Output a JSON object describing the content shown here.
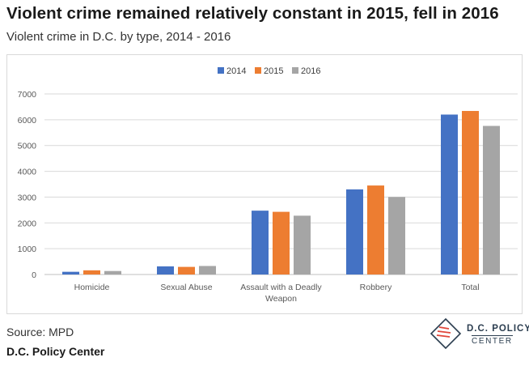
{
  "header": {
    "title": "Violent crime remained relatively constant in 2015, fell in 2016",
    "subtitle": "Violent crime in D.C. by type, 2014 - 2016"
  },
  "footer": {
    "source": "Source: MPD",
    "organization": "D.C. Policy Center"
  },
  "logo": {
    "line1": "D.C. POLICY",
    "line2": "CENTER",
    "icon": "dc-map-icon"
  },
  "chart_data": {
    "type": "bar",
    "categories": [
      "Homicide",
      "Sexual Abuse",
      "Assault with a Deadly Weapon",
      "Robbery",
      "Total"
    ],
    "category_lines": [
      [
        "Homicide"
      ],
      [
        "Sexual Abuse"
      ],
      [
        "Assault with a Deadly",
        "Weapon"
      ],
      [
        "Robbery"
      ],
      [
        "Total"
      ]
    ],
    "series": [
      {
        "name": "2014",
        "color": "#4472c4",
        "values": [
          105,
          315,
          2475,
          3300,
          6200
        ]
      },
      {
        "name": "2015",
        "color": "#ed7d31",
        "values": [
          162,
          295,
          2430,
          3450,
          6340
        ]
      },
      {
        "name": "2016",
        "color": "#a5a5a5",
        "values": [
          135,
          330,
          2280,
          3005,
          5760
        ]
      }
    ],
    "ylim": [
      0,
      7000
    ],
    "yticks": [
      0,
      1000,
      2000,
      3000,
      4000,
      5000,
      6000,
      7000
    ],
    "grid": true,
    "legend_position": "top-center",
    "xlabel": "",
    "ylabel": ""
  }
}
